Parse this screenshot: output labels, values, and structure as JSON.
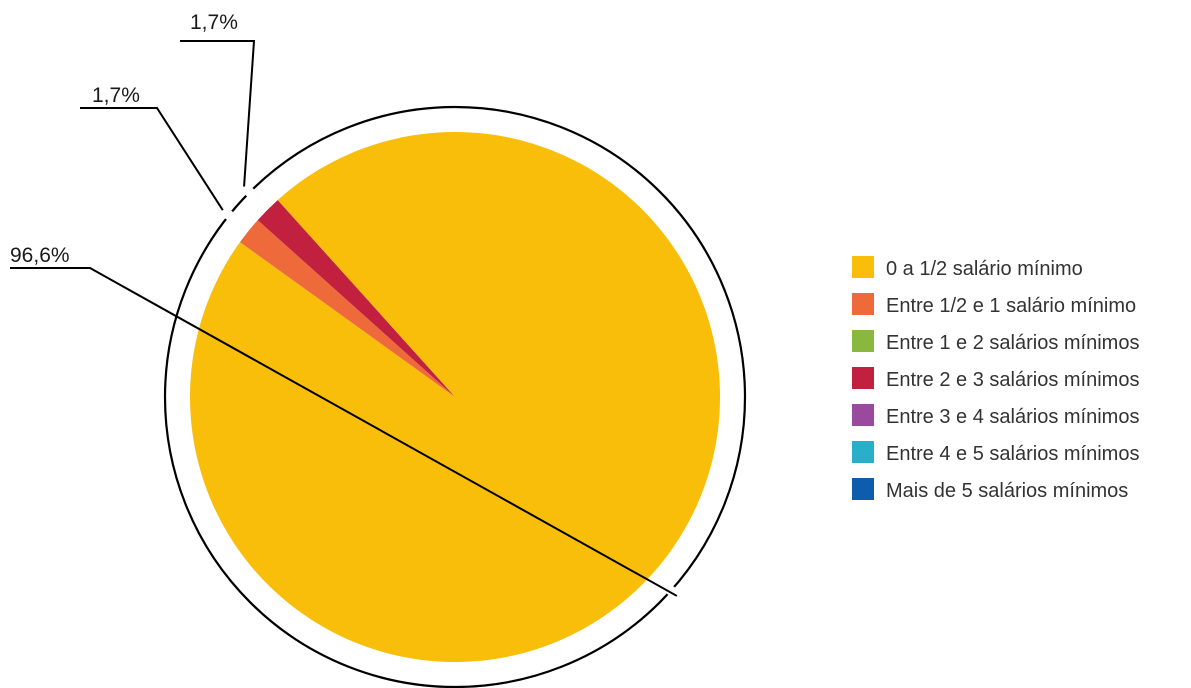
{
  "chart_data": {
    "type": "pie",
    "categories": [
      "0 a 1/2 salário mínimo",
      "Entre 1/2 e 1 salário mínimo",
      "Entre 1 e 2 salários mínimos",
      "Entre 2 e 3 salários mínimos",
      "Entre 3 e 4 salários mínimos",
      "Entre 4 e 5 salários mínimos",
      "Mais de 5 salários mínimos"
    ],
    "values": [
      96.6,
      1.7,
      0,
      1.7,
      0,
      0,
      0
    ],
    "data_labels": [
      "96,6%",
      "1,7%",
      "",
      "1,7%",
      "",
      "",
      ""
    ],
    "colors": [
      "#F9BE0A",
      "#EF6A3A",
      "#8AB83F",
      "#C1213F",
      "#9A4A9E",
      "#2AAFCB",
      "#0D5DAC"
    ],
    "legend_position": "right"
  }
}
